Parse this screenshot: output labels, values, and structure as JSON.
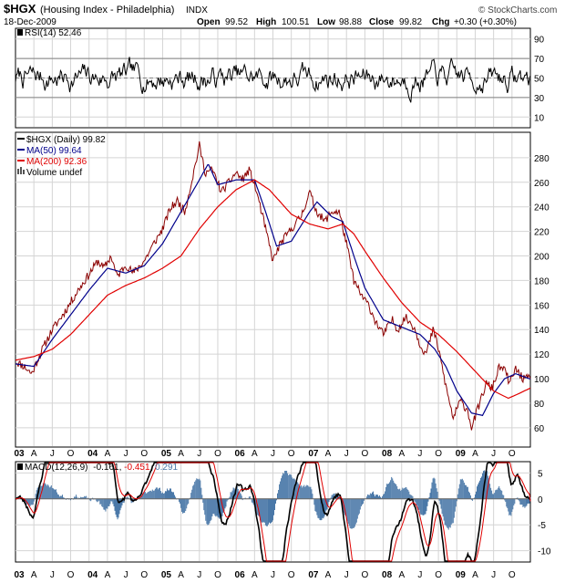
{
  "header": {
    "symbol": "$HGX",
    "name": "(Housing Index - Philadelphia)",
    "exchange": "INDX",
    "date": "18-Dec-2009",
    "open_label": "Open",
    "open": "99.52",
    "high_label": "High",
    "high": "100.51",
    "low_label": "Low",
    "low": "98.88",
    "close_label": "Close",
    "close": "99.82",
    "chg_label": "Chg",
    "chg": "+0.30 (+0.30%)",
    "copyright": "© StockCharts.com"
  },
  "colors": {
    "price": "#8b0000",
    "ma50": "#00008b",
    "ma200": "#e00000",
    "macd_hist": "#4a78a8",
    "macd_signal": "#e00000",
    "grid": "#d4d4d4",
    "ref_line": "#808080"
  },
  "chart_data": [
    {
      "type": "line",
      "name": "RSI panel",
      "legend": "RSI(14) 52.46",
      "ylim": [
        0,
        100
      ],
      "y_ticks": [
        "90",
        "70",
        "50",
        "30",
        "10"
      ],
      "reference_lines": [
        30,
        50,
        70
      ],
      "seed": 7,
      "series": [
        {
          "name": "RSI(14)",
          "last": 52.46,
          "mean": 50,
          "amplitude": 18,
          "min": 18,
          "max": 82
        }
      ]
    },
    {
      "type": "line",
      "name": "Price panel",
      "title": "$HGX (Daily) 99.82",
      "ylim": [
        45,
        300
      ],
      "y_ticks": [
        "280",
        "260",
        "240",
        "220",
        "200",
        "180",
        "160",
        "140",
        "120",
        "100",
        "80",
        "60"
      ],
      "x_range": [
        2003.0,
        2010.0
      ],
      "x_ticks": [
        {
          "t": 2003.0,
          "label": "03"
        },
        {
          "t": 2003.25,
          "label": "A"
        },
        {
          "t": 2003.5,
          "label": "J"
        },
        {
          "t": 2003.75,
          "label": "O"
        },
        {
          "t": 2004.0,
          "label": "04"
        },
        {
          "t": 2004.25,
          "label": "A"
        },
        {
          "t": 2004.5,
          "label": "J"
        },
        {
          "t": 2004.75,
          "label": "O"
        },
        {
          "t": 2005.0,
          "label": "05"
        },
        {
          "t": 2005.25,
          "label": "A"
        },
        {
          "t": 2005.5,
          "label": "J"
        },
        {
          "t": 2005.75,
          "label": "O"
        },
        {
          "t": 2006.0,
          "label": "06"
        },
        {
          "t": 2006.25,
          "label": "A"
        },
        {
          "t": 2006.5,
          "label": "J"
        },
        {
          "t": 2006.75,
          "label": "O"
        },
        {
          "t": 2007.0,
          "label": "07"
        },
        {
          "t": 2007.25,
          "label": "A"
        },
        {
          "t": 2007.5,
          "label": "J"
        },
        {
          "t": 2007.75,
          "label": "O"
        },
        {
          "t": 2008.0,
          "label": "08"
        },
        {
          "t": 2008.25,
          "label": "A"
        },
        {
          "t": 2008.5,
          "label": "J"
        },
        {
          "t": 2008.75,
          "label": "O"
        },
        {
          "t": 2009.0,
          "label": "09"
        },
        {
          "t": 2009.25,
          "label": "A"
        },
        {
          "t": 2009.5,
          "label": "J"
        },
        {
          "t": 2009.75,
          "label": "O"
        }
      ],
      "legend": [
        {
          "key": "price",
          "label": "$HGX (Daily) 99.82"
        },
        {
          "key": "ma50",
          "label": "MA(50) 99.64"
        },
        {
          "key": "ma200",
          "label": "MA(200) 92.36"
        },
        {
          "key": "volume",
          "label": "Volume undef"
        }
      ],
      "seed": 11,
      "series": [
        {
          "name": "$HGX (Daily)",
          "last": 99.82,
          "noise": 3.5,
          "points": [
            [
              2003.0,
              114
            ],
            [
              2003.12,
              110
            ],
            [
              2003.22,
              104
            ],
            [
              2003.35,
              122
            ],
            [
              2003.5,
              140
            ],
            [
              2003.62,
              150
            ],
            [
              2003.75,
              162
            ],
            [
              2003.85,
              172
            ],
            [
              2004.0,
              185
            ],
            [
              2004.12,
              196
            ],
            [
              2004.2,
              190
            ],
            [
              2004.3,
              200
            ],
            [
              2004.38,
              183
            ],
            [
              2004.5,
              193
            ],
            [
              2004.6,
              186
            ],
            [
              2004.75,
              196
            ],
            [
              2004.9,
              212
            ],
            [
              2005.0,
              222
            ],
            [
              2005.1,
              238
            ],
            [
              2005.2,
              245
            ],
            [
              2005.3,
              236
            ],
            [
              2005.4,
              262
            ],
            [
              2005.5,
              290
            ],
            [
              2005.58,
              268
            ],
            [
              2005.68,
              270
            ],
            [
              2005.8,
              252
            ],
            [
              2005.9,
              260
            ],
            [
              2006.0,
              268
            ],
            [
              2006.08,
              262
            ],
            [
              2006.18,
              270
            ],
            [
              2006.28,
              252
            ],
            [
              2006.4,
              222
            ],
            [
              2006.5,
              196
            ],
            [
              2006.6,
              210
            ],
            [
              2006.75,
              222
            ],
            [
              2006.88,
              232
            ],
            [
              2007.0,
              252
            ],
            [
              2007.08,
              238
            ],
            [
              2007.2,
              228
            ],
            [
              2007.3,
              236
            ],
            [
              2007.4,
              236
            ],
            [
              2007.5,
              210
            ],
            [
              2007.6,
              180
            ],
            [
              2007.7,
              168
            ],
            [
              2007.8,
              160
            ],
            [
              2007.9,
              146
            ],
            [
              2008.0,
              136
            ],
            [
              2008.12,
              148
            ],
            [
              2008.2,
              140
            ],
            [
              2008.3,
              150
            ],
            [
              2008.42,
              142
            ],
            [
              2008.5,
              128
            ],
            [
              2008.58,
              120
            ],
            [
              2008.68,
              140
            ],
            [
              2008.76,
              122
            ],
            [
              2008.85,
              94
            ],
            [
              2008.95,
              68
            ],
            [
              2009.05,
              82
            ],
            [
              2009.15,
              74
            ],
            [
              2009.2,
              60
            ],
            [
              2009.3,
              78
            ],
            [
              2009.4,
              96
            ],
            [
              2009.48,
              92
            ],
            [
              2009.58,
              110
            ],
            [
              2009.66,
              106
            ],
            [
              2009.72,
              96
            ],
            [
              2009.8,
              108
            ],
            [
              2009.9,
              100
            ],
            [
              2010.0,
              99.82
            ]
          ]
        },
        {
          "name": "MA(50)",
          "last": 99.64,
          "points": [
            [
              2003.0,
              112
            ],
            [
              2003.25,
              110
            ],
            [
              2003.5,
              132
            ],
            [
              2003.75,
              152
            ],
            [
              2004.0,
              172
            ],
            [
              2004.25,
              190
            ],
            [
              2004.5,
              186
            ],
            [
              2004.75,
              192
            ],
            [
              2005.0,
              210
            ],
            [
              2005.25,
              236
            ],
            [
              2005.5,
              262
            ],
            [
              2005.62,
              275
            ],
            [
              2005.75,
              258
            ],
            [
              2006.0,
              262
            ],
            [
              2006.25,
              262
            ],
            [
              2006.4,
              236
            ],
            [
              2006.55,
              208
            ],
            [
              2006.75,
              212
            ],
            [
              2007.0,
              236
            ],
            [
              2007.1,
              244
            ],
            [
              2007.3,
              232
            ],
            [
              2007.45,
              228
            ],
            [
              2007.6,
              200
            ],
            [
              2007.75,
              174
            ],
            [
              2008.0,
              148
            ],
            [
              2008.25,
              142
            ],
            [
              2008.5,
              136
            ],
            [
              2008.7,
              124
            ],
            [
              2008.85,
              110
            ],
            [
              2009.0,
              90
            ],
            [
              2009.2,
              72
            ],
            [
              2009.35,
              70
            ],
            [
              2009.5,
              88
            ],
            [
              2009.65,
              100
            ],
            [
              2009.8,
              104
            ],
            [
              2010.0,
              99.64
            ]
          ]
        },
        {
          "name": "MA(200)",
          "last": 92.36,
          "points": [
            [
              2003.0,
              115
            ],
            [
              2003.25,
              118
            ],
            [
              2003.5,
              124
            ],
            [
              2003.75,
              136
            ],
            [
              2004.0,
              152
            ],
            [
              2004.25,
              168
            ],
            [
              2004.5,
              176
            ],
            [
              2004.75,
              182
            ],
            [
              2005.0,
              190
            ],
            [
              2005.25,
              200
            ],
            [
              2005.5,
              222
            ],
            [
              2005.75,
              240
            ],
            [
              2006.0,
              254
            ],
            [
              2006.25,
              262
            ],
            [
              2006.45,
              254
            ],
            [
              2006.75,
              234
            ],
            [
              2007.0,
              226
            ],
            [
              2007.25,
              222
            ],
            [
              2007.45,
              226
            ],
            [
              2007.6,
              218
            ],
            [
              2007.75,
              204
            ],
            [
              2008.0,
              182
            ],
            [
              2008.25,
              162
            ],
            [
              2008.5,
              146
            ],
            [
              2008.75,
              136
            ],
            [
              2009.0,
              122
            ],
            [
              2009.25,
              106
            ],
            [
              2009.5,
              90
            ],
            [
              2009.7,
              84
            ],
            [
              2009.85,
              88
            ],
            [
              2010.0,
              92.36
            ]
          ]
        }
      ]
    },
    {
      "type": "line",
      "name": "MACD panel",
      "legend_prefix": "MACD(12,26,9)",
      "macd": "-0.161",
      "signal": "-0.451",
      "histogram": "0.291",
      "ylim": [
        -12,
        7
      ],
      "y_ticks": [
        "5",
        "0",
        "-5",
        "-10"
      ],
      "seed": 23,
      "series": [
        {
          "name": "MACD",
          "last": -0.161
        },
        {
          "name": "Signal",
          "last": -0.451
        },
        {
          "name": "Histogram",
          "last": 0.291
        }
      ]
    }
  ]
}
